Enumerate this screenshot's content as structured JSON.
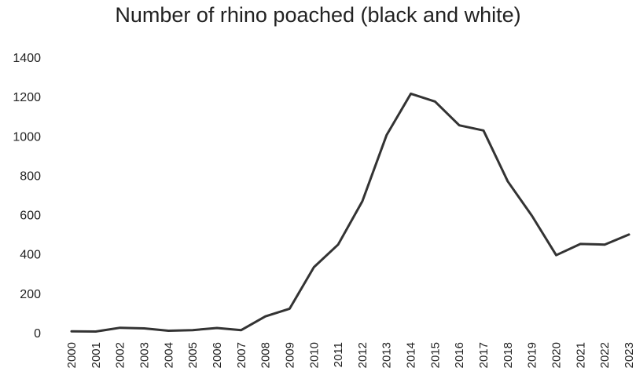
{
  "chart_data": {
    "type": "line",
    "title": "Number of rhino poached (black and white)",
    "xlabel": "",
    "ylabel": "",
    "ylim": [
      0,
      1400
    ],
    "yticks": [
      0,
      200,
      400,
      600,
      800,
      1000,
      1200,
      1400
    ],
    "grid": false,
    "legend": "none",
    "line_color": "#333333",
    "x": [
      "2000",
      "2001",
      "2002",
      "2003",
      "2004",
      "2005",
      "2006",
      "2007",
      "2008",
      "2009",
      "2010",
      "2011",
      "2012",
      "2013",
      "2014",
      "2015",
      "2016",
      "2017",
      "2018",
      "2019",
      "2020",
      "2021",
      "2022",
      "2023"
    ],
    "series": [
      {
        "values": [
          7,
          6,
          25,
          22,
          10,
          13,
          24,
          13,
          83,
          122,
          333,
          448,
          668,
          1004,
          1215,
          1175,
          1054,
          1028,
          769,
          594,
          394,
          451,
          448,
          499
        ]
      }
    ]
  }
}
